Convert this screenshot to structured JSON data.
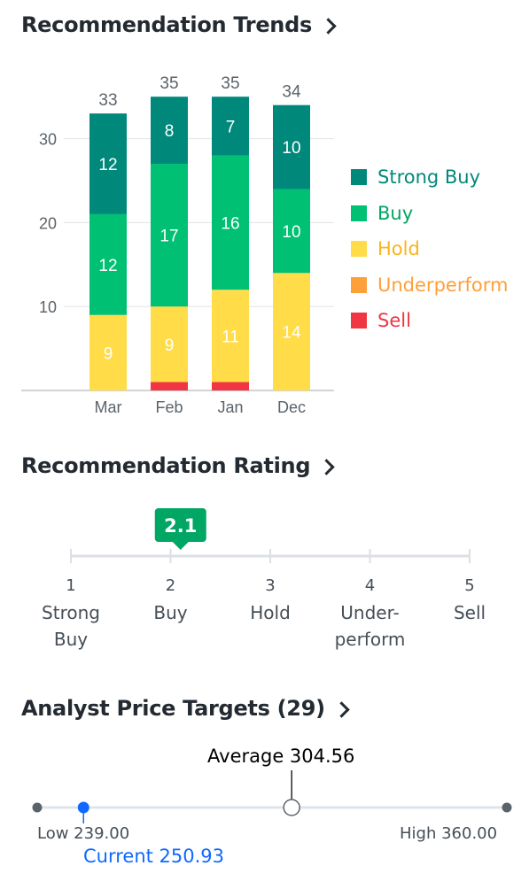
{
  "sections": {
    "trends_title": "Recommendation Trends",
    "rating_title": "Recommendation Rating",
    "targets_title": "Analyst Price Targets (29)"
  },
  "chart_data": {
    "type": "bar",
    "stacked": true,
    "categories": [
      "Mar",
      "Feb",
      "Jan",
      "Dec"
    ],
    "totals": [
      33,
      35,
      35,
      34
    ],
    "series": [
      {
        "name": "Strong Buy",
        "color": "#00897b",
        "values": [
          12,
          8,
          7,
          10
        ]
      },
      {
        "name": "Buy",
        "color": "#00c073",
        "values": [
          12,
          17,
          16,
          10
        ]
      },
      {
        "name": "Hold",
        "color": "#ffdc48",
        "values": [
          9,
          9,
          11,
          14
        ]
      },
      {
        "name": "Underperform",
        "color": "#ff9f3a",
        "values": [
          0,
          0,
          0,
          0
        ]
      },
      {
        "name": "Sell",
        "color": "#f03643",
        "values": [
          0,
          1,
          1,
          0
        ]
      }
    ],
    "y_ticks": [
      "10",
      "20",
      "30"
    ],
    "ylim": [
      0,
      33
    ],
    "grid": true,
    "legend_position": "right"
  },
  "legend_text_colors": {
    "Strong Buy": "#00897b",
    "Buy": "#00a663",
    "Hold": "#f8b51c",
    "Underperform": "#ff9f3a",
    "Sell": "#f03643"
  },
  "rating": {
    "value": "2.1",
    "value_num": 2.1,
    "badge_color": "#00a663",
    "scale": [
      {
        "num": "1",
        "line1": "Strong",
        "line2": "Buy"
      },
      {
        "num": "2",
        "line1": "Buy",
        "line2": ""
      },
      {
        "num": "3",
        "line1": "Hold",
        "line2": ""
      },
      {
        "num": "4",
        "line1": "Under-",
        "line2": "perform"
      },
      {
        "num": "5",
        "line1": "Sell",
        "line2": ""
      }
    ]
  },
  "price_targets": {
    "low_label": "Low 239.00",
    "high_label": "High 360.00",
    "average_label": "Average 304.56",
    "current_label": "Current 250.93",
    "low": 239.0,
    "high": 360.0,
    "average": 304.56,
    "current": 250.93,
    "current_color": "#0f69ff"
  }
}
